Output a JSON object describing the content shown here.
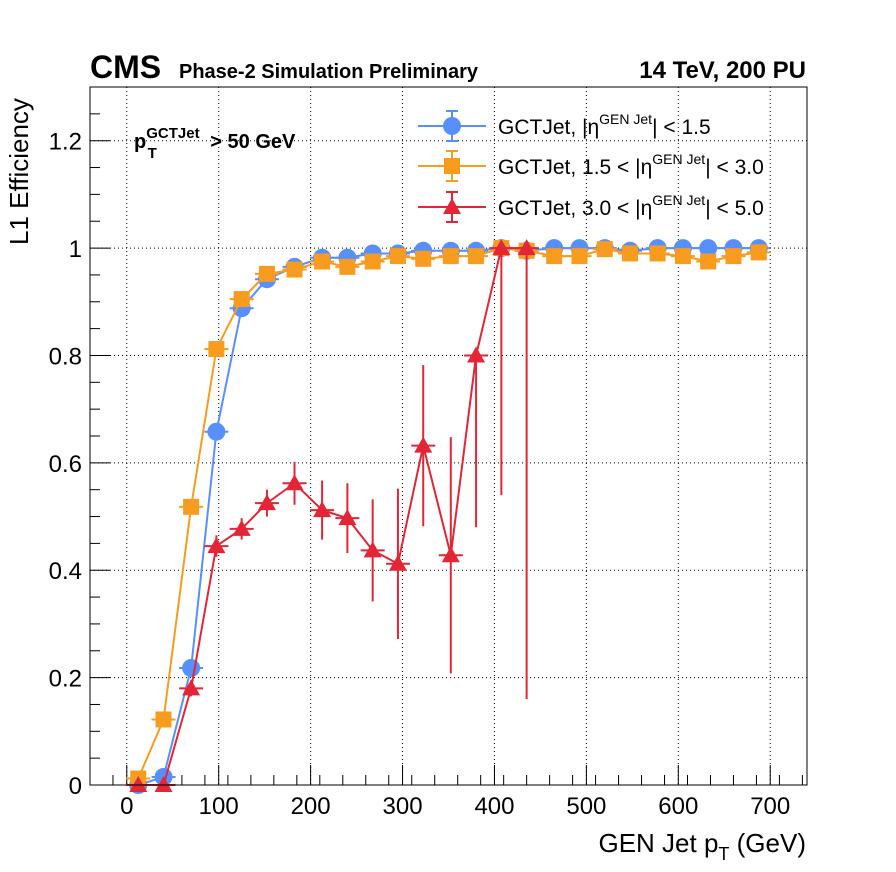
{
  "header": {
    "experiment": "CMS",
    "subtitle": "Phase-2 Simulation Preliminary",
    "energy": "14 TeV, 200 PU"
  },
  "annotation": {
    "base": "p",
    "sub": "T",
    "sup": "GCTJet",
    "rest": " > 50 GeV"
  },
  "axes": {
    "ylabel": "L1 Efficiency",
    "xlabel_base": "GEN Jet p",
    "xlabel_sub": "T",
    "xlabel_rest": " (GeV)"
  },
  "legend": {
    "entries": [
      {
        "pre": "GCTJet, |η",
        "sup": "GEN Jet",
        "post": "| < 1.5"
      },
      {
        "pre": "GCTJet, 1.5 < |η",
        "sup": "GEN Jet",
        "post": "| < 3.0"
      },
      {
        "pre": "GCTJet, 3.0 < |η",
        "sup": "GEN Jet",
        "post": "| < 5.0"
      }
    ]
  },
  "chart_data": {
    "type": "line",
    "xlim": [
      -40,
      740
    ],
    "ylim": [
      0,
      1.3
    ],
    "x_ticks": [
      0,
      100,
      200,
      300,
      400,
      500,
      600,
      700
    ],
    "y_ticks": [
      0,
      0.2,
      0.4,
      0.6,
      0.8,
      1,
      1.2
    ],
    "x_tick_labels": [
      "0",
      "100",
      "200",
      "300",
      "400",
      "500",
      "600",
      "700"
    ],
    "y_tick_labels": [
      "0",
      "0.2",
      "0.4",
      "0.6",
      "0.8",
      "1",
      "1.2"
    ],
    "grid": true,
    "legend_position": "top-right",
    "series": [
      {
        "name": "GCTJet, |ηGEN Jet| < 1.5",
        "color": "#5790fc",
        "marker": "circle",
        "x": [
          12.5,
          40,
          70,
          97.5,
          125,
          152.5,
          182.5,
          212.5,
          240,
          267.5,
          295,
          322.5,
          352.5,
          380,
          407.5,
          435,
          465,
          492.5,
          520,
          547.5,
          577.5,
          605,
          632.5,
          660,
          687.5
        ],
        "y": [
          0.0,
          0.015,
          0.218,
          0.658,
          0.888,
          0.942,
          0.965,
          0.982,
          0.982,
          0.99,
          0.99,
          0.995,
          0.995,
          0.995,
          1.0,
          0.995,
          1.0,
          1.0,
          1.0,
          0.995,
          1.0,
          1.0,
          1.0,
          1.0,
          1.0
        ],
        "err": [
          0.003,
          0.005,
          0.01,
          0.012,
          0.01,
          0.008,
          0.007,
          0.006,
          0.006,
          0.005,
          0.005,
          0.004,
          0.004,
          0.004,
          0.003,
          0.004,
          0.003,
          0.003,
          0.003,
          0.004,
          0.003,
          0.003,
          0.003,
          0.003,
          0.003
        ]
      },
      {
        "name": "GCTJet, 1.5 < |ηGEN Jet| < 3.0",
        "color": "#f89c20",
        "marker": "square",
        "x": [
          12.5,
          40,
          70,
          97.5,
          125,
          152.5,
          182.5,
          212.5,
          240,
          267.5,
          295,
          322.5,
          352.5,
          380,
          407.5,
          435,
          465,
          492.5,
          520,
          547.5,
          577.5,
          605,
          632.5,
          660,
          687.5
        ],
        "y": [
          0.012,
          0.122,
          0.518,
          0.812,
          0.905,
          0.952,
          0.96,
          0.975,
          0.965,
          0.975,
          0.985,
          0.98,
          0.985,
          0.985,
          1.0,
          0.995,
          0.985,
          0.985,
          0.998,
          0.99,
          0.99,
          0.985,
          0.975,
          0.985,
          0.992
        ],
        "err": [
          0.004,
          0.008,
          0.012,
          0.01,
          0.009,
          0.008,
          0.008,
          0.008,
          0.01,
          0.009,
          0.008,
          0.01,
          0.01,
          0.01,
          0.006,
          0.008,
          0.01,
          0.01,
          0.006,
          0.01,
          0.01,
          0.012,
          0.015,
          0.012,
          0.01
        ]
      },
      {
        "name": "GCTJet, 3.0 < |ηGEN Jet| < 5.0",
        "color": "#e42536",
        "marker": "triangle",
        "x": [
          12.5,
          40,
          70,
          97.5,
          125,
          152.5,
          182.5,
          212.5,
          240,
          267.5,
          295,
          322.5,
          352.5,
          380,
          407.5,
          435
        ],
        "y": [
          0.0,
          0.0,
          0.18,
          0.445,
          0.477,
          0.525,
          0.562,
          0.512,
          0.497,
          0.437,
          0.412,
          0.632,
          0.428,
          0.8,
          1.0,
          1.0
        ],
        "err_low": [
          0.003,
          0.005,
          0.015,
          0.02,
          0.02,
          0.025,
          0.04,
          0.055,
          0.065,
          0.095,
          0.14,
          0.15,
          0.22,
          0.32,
          0.46,
          0.84
        ],
        "err_high": [
          0.003,
          0.005,
          0.015,
          0.02,
          0.02,
          0.025,
          0.04,
          0.055,
          0.065,
          0.095,
          0.14,
          0.15,
          0.22,
          0.0,
          0.0,
          0.0
        ]
      }
    ]
  }
}
